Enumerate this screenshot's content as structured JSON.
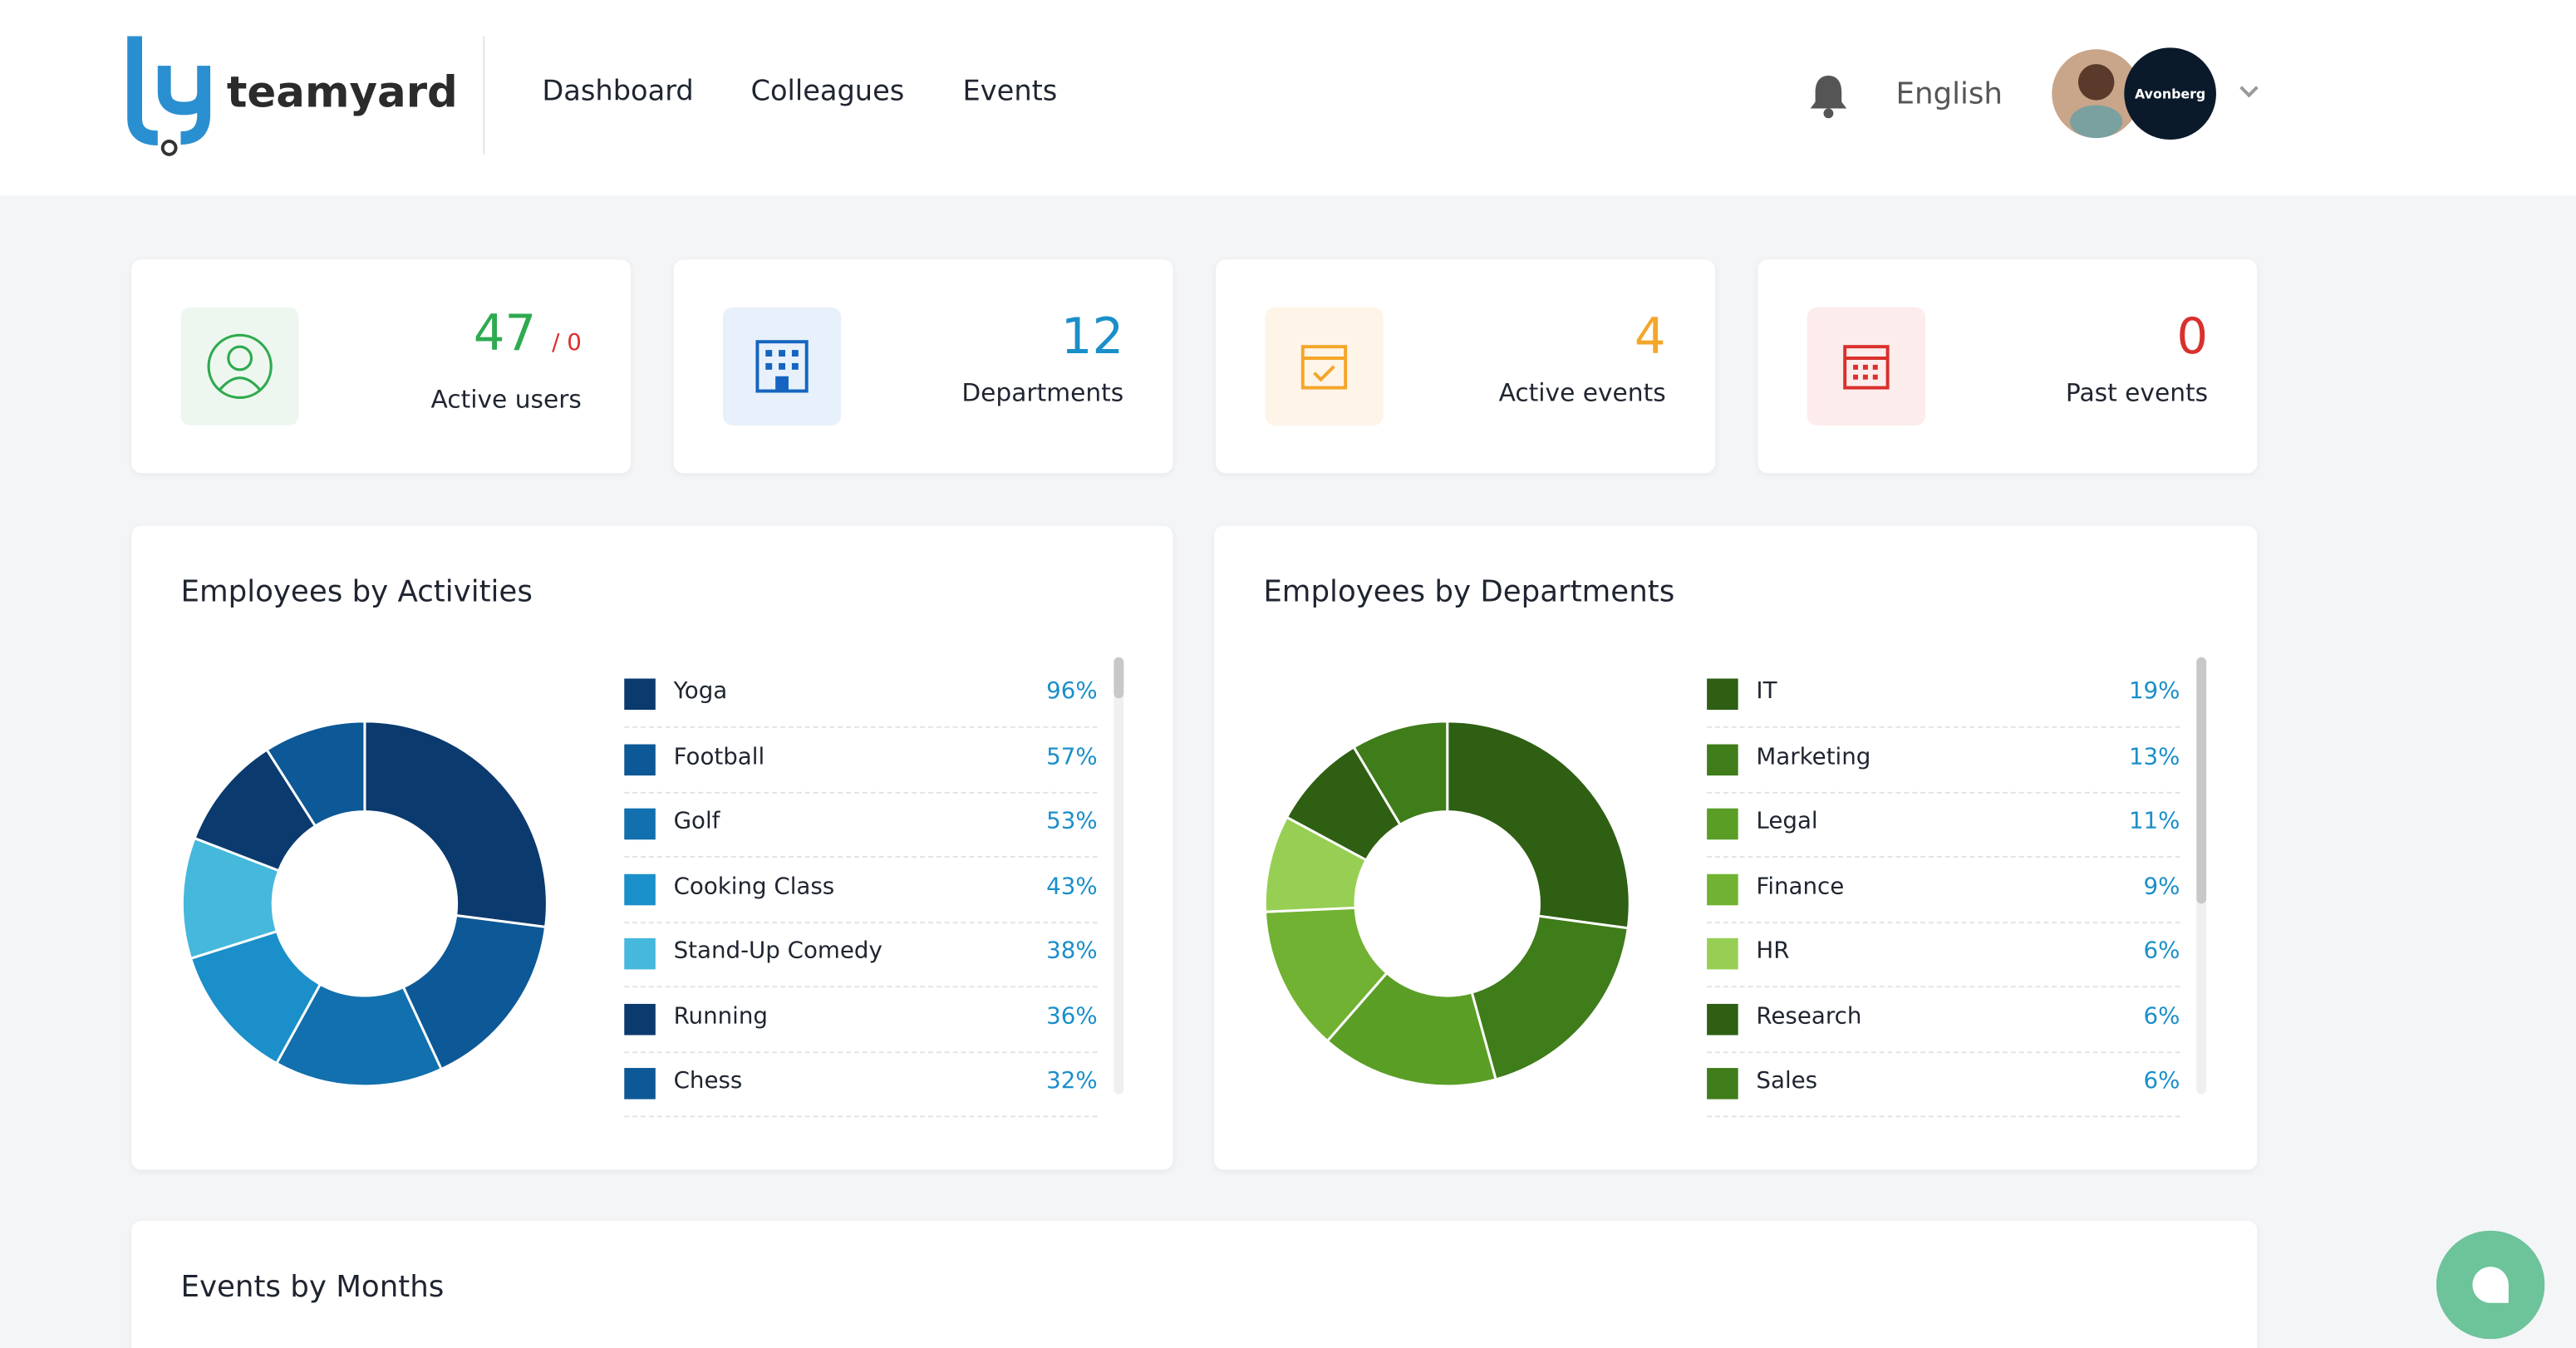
{
  "header": {
    "logo": "teamyard",
    "nav": [
      "Dashboard",
      "Colleagues",
      "Events"
    ],
    "language": "English",
    "company": "Avonberg"
  },
  "stats": [
    {
      "value": 47,
      "suffix": "/ 0",
      "label": "Active users",
      "color": "#2eaa4f"
    },
    {
      "value": 12,
      "label": "Departments",
      "color": "#1a8fc9"
    },
    {
      "value": 4,
      "label": "Active events",
      "color": "#f4a62a"
    },
    {
      "value": 0,
      "label": "Past events",
      "color": "#d9302c"
    }
  ],
  "chart_data": [
    {
      "type": "donut",
      "title": "Employees by Activities",
      "categories": [
        "Yoga",
        "Football",
        "Golf",
        "Cooking Class",
        "Stand-Up Comedy",
        "Running",
        "Chess"
      ],
      "values": [
        96,
        57,
        53,
        43,
        38,
        36,
        32
      ],
      "value_labels": [
        "96%",
        "57%",
        "53%",
        "43%",
        "38%",
        "36%",
        "32%"
      ],
      "colors": [
        "#0b3a6e",
        "#0d5896",
        "#1170ad",
        "#1a8fc9",
        "#45b8dc",
        "#0b3a6e",
        "#0d5896"
      ]
    },
    {
      "type": "donut",
      "title": "Employees by Departments",
      "categories": [
        "IT",
        "Marketing",
        "Legal",
        "Finance",
        "HR",
        "Research",
        "Sales"
      ],
      "values": [
        19,
        13,
        11,
        9,
        6,
        6,
        6
      ],
      "value_labels": [
        "19%",
        "13%",
        "11%",
        "9%",
        "6%",
        "6%",
        "6%"
      ],
      "colors": [
        "#2e5f12",
        "#3f7c1a",
        "#5a9e26",
        "#71b232",
        "#97cf54",
        "#2e5f12",
        "#3f7c1a"
      ]
    }
  ],
  "events_title": "Events by Months"
}
